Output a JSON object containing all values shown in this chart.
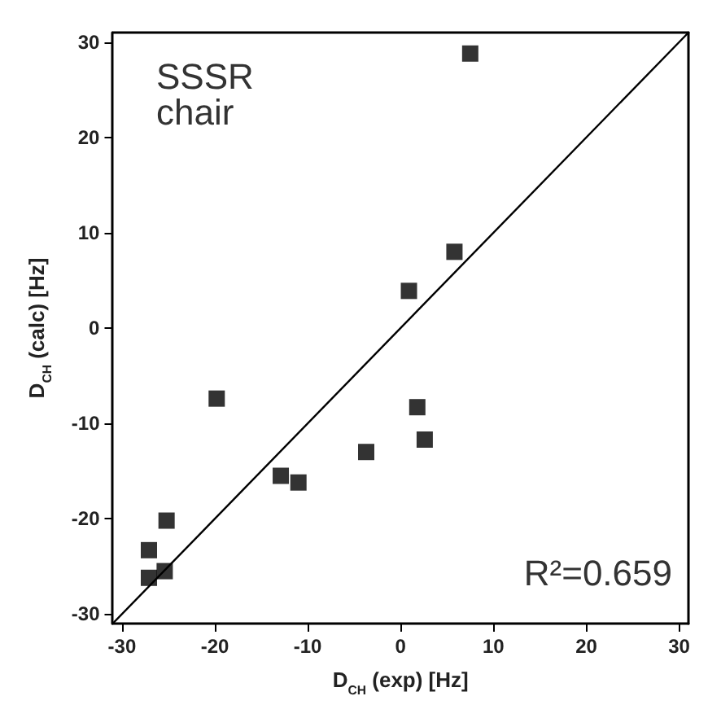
{
  "chart_data": {
    "type": "scatter",
    "xlabel": "D$_{CH}$ (exp) [Hz]",
    "ylabel": "D$_{CH}$ (calc) [Hz]",
    "annotations": [
      "SSSR\nchair",
      "R²=0.659"
    ],
    "series": [
      {
        "color": "#000000",
        "x": [
          7.5,
          5.8,
          0.9,
          1.8,
          2.6,
          -3.7,
          -11.0,
          -12.9,
          -19.8,
          -25.2,
          -27.1,
          -27.1,
          -25.4
        ],
        "values": [
          28.8,
          8.0,
          3.9,
          -8.3,
          -11.7,
          -13.0,
          -16.2,
          -15.5,
          -7.4,
          -20.2,
          -23.3,
          -26.2,
          -25.5
        ]
      },
      {
        "type": "line",
        "color": "#000000",
        "marker": "none",
        "x": [
          -31,
          31
        ],
        "values": [
          -31,
          31
        ]
      }
    ],
    "xlim": [
      -31,
      31
    ],
    "ylim": [
      -31,
      31
    ],
    "xticks": [
      -30,
      -20,
      -10,
      0,
      10,
      20,
      30
    ],
    "yticks": [
      -30,
      -20,
      -10,
      0,
      10,
      20,
      30
    ],
    "marker": "square"
  }
}
